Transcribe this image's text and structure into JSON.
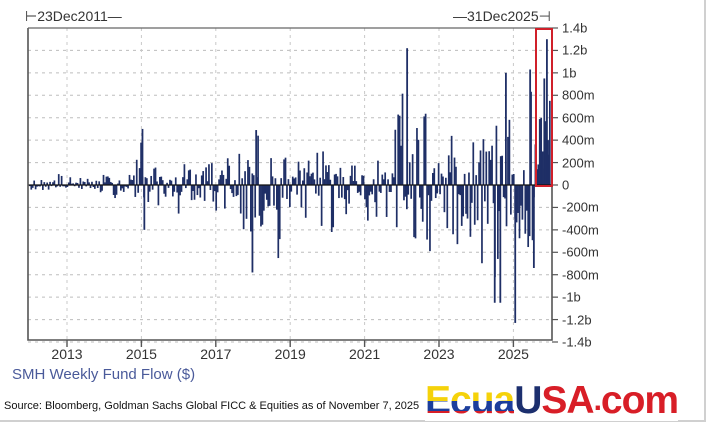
{
  "header": {
    "start_date": "⊢23Dec2011—",
    "end_date": "—31Dec2025⊣"
  },
  "footer": {
    "series_title": "SMH Weekly Fund Flow ($)",
    "source": "Source: Bloomberg, Goldman Sachs Global FICC & Equities as of November 7, 2025"
  },
  "logo": {
    "part1": "Ecua",
    "part2": "U",
    "part3": "SA",
    "part4": ".",
    "part5": "com"
  },
  "colors": {
    "bars": "#1f2f66",
    "highlight_box": "#d0202a",
    "grid": "#b5b5b5",
    "axis": "#555555",
    "zero_line": "#111111",
    "series_title": "#4a5a9a"
  },
  "chart_data": {
    "type": "bar",
    "title": "SMH Weekly Fund Flow ($)",
    "xlabel": "",
    "ylabel": "",
    "x_range": [
      "23Dec2011",
      "31Dec2025"
    ],
    "ylim": [
      -1400,
      1400
    ],
    "y_unit": "millions USD",
    "y_ticks": [
      "1.4b",
      "1.2b",
      "1b",
      "800m",
      "600m",
      "400m",
      "200m",
      "0",
      "-200m",
      "-400m",
      "-600m",
      "-800m",
      "-1b",
      "-1.2b",
      "-1.4b"
    ],
    "y_tick_values": [
      1400,
      1200,
      1000,
      800,
      600,
      400,
      200,
      0,
      -200,
      -400,
      -600,
      -800,
      -1000,
      -1200,
      -1400
    ],
    "x_ticks": [
      "2013",
      "2015",
      "2017",
      "2019",
      "2021",
      "2023",
      "2025"
    ],
    "grid": true,
    "legend": "none",
    "annotations": [
      "Red highlight box around most recent weeks (late 2025) showing record inflows up to ~1.3b"
    ],
    "series": [
      {
        "name": "SMH Weekly Fund Flow",
        "note": "approximate monthly-sampled peaks (inflow max, outflow min) in $m read from chart",
        "x": [
          "2012-01",
          "2012-04",
          "2012-07",
          "2012-10",
          "2013-01",
          "2013-04",
          "2013-07",
          "2013-10",
          "2014-01",
          "2014-04",
          "2014-07",
          "2014-10",
          "2015-01",
          "2015-04",
          "2015-07",
          "2015-10",
          "2016-01",
          "2016-04",
          "2016-07",
          "2016-10",
          "2017-01",
          "2017-04",
          "2017-07",
          "2017-10",
          "2018-01",
          "2018-04",
          "2018-07",
          "2018-10",
          "2019-01",
          "2019-04",
          "2019-07",
          "2019-10",
          "2020-01",
          "2020-04",
          "2020-07",
          "2020-10",
          "2021-01",
          "2021-04",
          "2021-07",
          "2021-10",
          "2022-01",
          "2022-04",
          "2022-07",
          "2022-10",
          "2023-01",
          "2023-04",
          "2023-07",
          "2023-10",
          "2024-01",
          "2024-04",
          "2024-07",
          "2024-10",
          "2025-01",
          "2025-04",
          "2025-07",
          "2025-10",
          "2025-12"
        ],
        "inflow_max": [
          40,
          60,
          80,
          120,
          70,
          90,
          60,
          50,
          110,
          60,
          130,
          170,
          500,
          200,
          100,
          120,
          260,
          150,
          130,
          200,
          300,
          360,
          250,
          330,
          490,
          400,
          430,
          280,
          350,
          200,
          340,
          310,
          330,
          200,
          220,
          230,
          280,
          350,
          300,
          400,
          1220,
          600,
          800,
          650,
          300,
          450,
          420,
          400,
          500,
          650,
          1000,
          650,
          550,
          900,
          1030,
          700,
          1300
        ],
        "outflow_min": [
          -40,
          -60,
          -50,
          -60,
          -80,
          -70,
          -50,
          -60,
          -100,
          -120,
          -70,
          -110,
          -400,
          -160,
          -200,
          -160,
          -300,
          -120,
          -180,
          -140,
          -320,
          -230,
          -200,
          -480,
          -780,
          -420,
          -560,
          -750,
          -360,
          -630,
          -450,
          -500,
          -600,
          -310,
          -270,
          -280,
          -350,
          -380,
          -400,
          -420,
          -530,
          -600,
          -660,
          -580,
          -230,
          -620,
          -540,
          -470,
          -600,
          -1050,
          -1050,
          -520,
          -1230,
          -700,
          -740,
          -180,
          -100
        ]
      }
    ]
  }
}
